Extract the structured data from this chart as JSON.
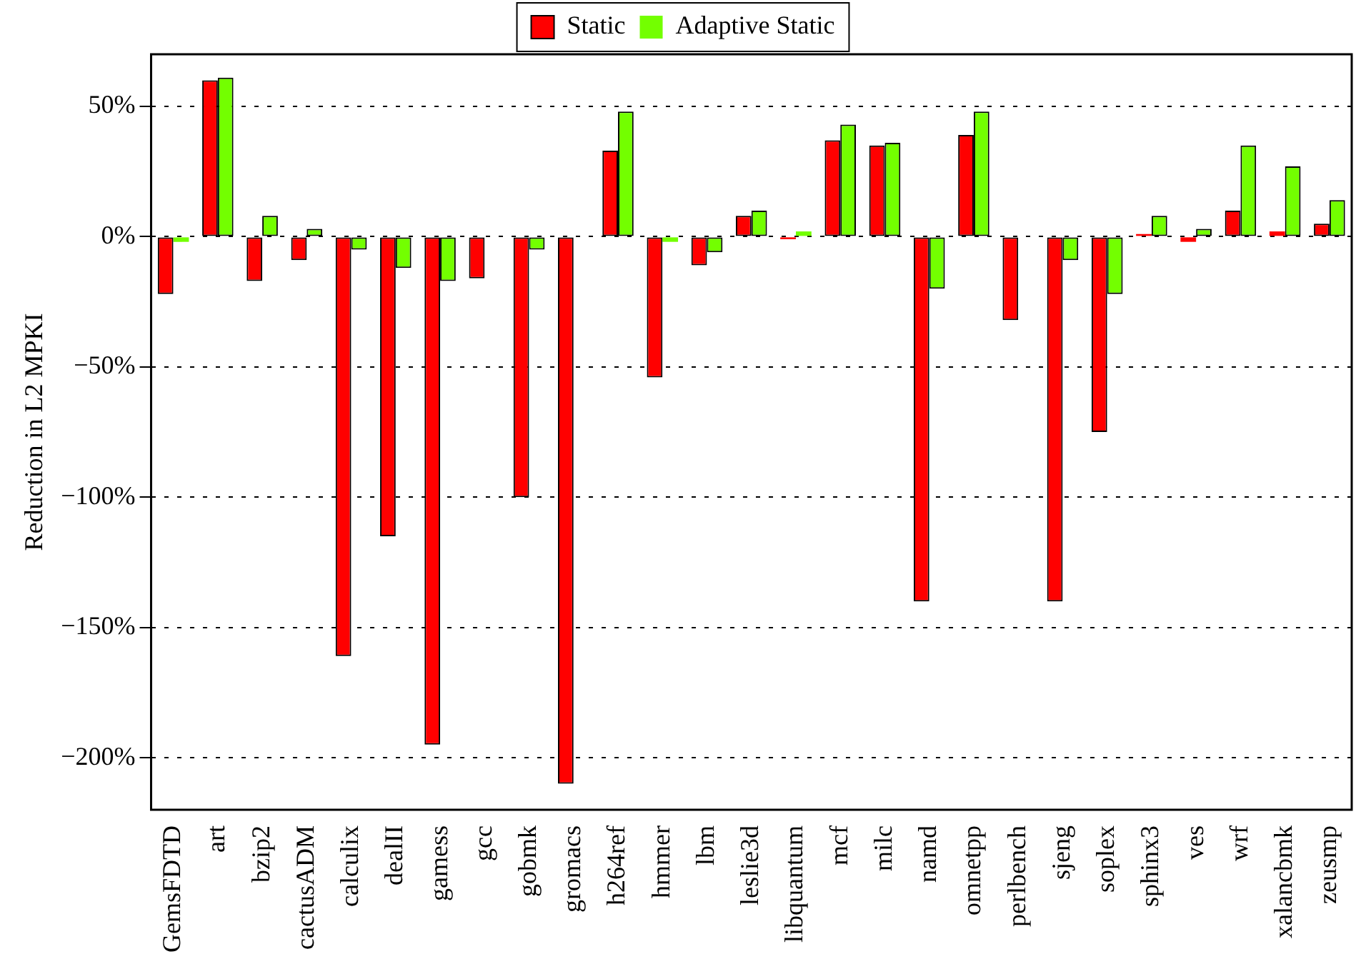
{
  "chart_data": {
    "type": "bar",
    "ylabel": "Reduction in L2 MPKI",
    "categories": [
      "GemsFDTD",
      "art",
      "bzip2",
      "cactusADM",
      "calculix",
      "dealII",
      "gamess",
      "gcc",
      "gobmk",
      "gromacs",
      "h264ref",
      "hmmer",
      "lbm",
      "leslie3d",
      "libquantum",
      "mcf",
      "milc",
      "namd",
      "omnetpp",
      "perlbench",
      "sjeng",
      "soplex",
      "sphinx3",
      "ves",
      "wrf",
      "xalancbmk",
      "zeusmp"
    ],
    "series": [
      {
        "name": "Static",
        "color": "#ff0000",
        "values": [
          -22,
          60,
          -17,
          -9,
          -161,
          -115,
          -195,
          -16,
          -100,
          -210,
          33,
          -54,
          -11,
          8,
          -1,
          37,
          35,
          -140,
          39,
          -32,
          -140,
          -75,
          1,
          -2,
          10,
          2,
          5
        ]
      },
      {
        "name": "Adaptive Static",
        "color": "#73ff00",
        "values": [
          -2,
          61,
          8,
          3,
          -5,
          -12,
          -17,
          0,
          -5,
          0,
          48,
          -2,
          -6,
          10,
          2,
          43,
          36,
          -20,
          48,
          0,
          -9,
          -22,
          8,
          3,
          35,
          27,
          14
        ]
      }
    ],
    "ylim": [
      -220,
      70
    ],
    "yticks": [
      {
        "value": -200,
        "label": "−200%"
      },
      {
        "value": -150,
        "label": "−150%"
      },
      {
        "value": -100,
        "label": "−100%"
      },
      {
        "value": -50,
        "label": "−50%"
      },
      {
        "value": 0,
        "label": "0%"
      },
      {
        "value": 50,
        "label": "50%"
      }
    ],
    "grid": "y",
    "legend": "top"
  }
}
